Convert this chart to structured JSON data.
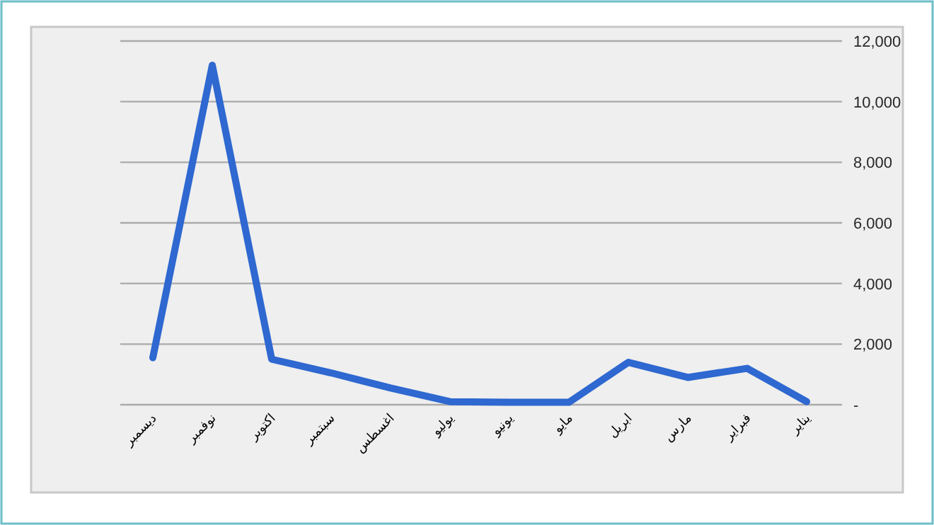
{
  "chart_data": {
    "type": "line",
    "categories": [
      "ديسمبر",
      "نوفمبر",
      "اكتوبر",
      "سبتمبر",
      "اغسطس",
      "يوليو",
      "يونيو",
      "مايو",
      "ابريل",
      "مارس",
      "فبراير",
      "يناير"
    ],
    "series": [
      {
        "color": "#2e68d0",
        "values": [
          1550,
          11200,
          1500,
          1050,
          550,
          100,
          80,
          80,
          1400,
          900,
          1200,
          100
        ]
      }
    ],
    "ylim": [
      0,
      12000
    ],
    "yticks": [
      {
        "value": 0,
        "label": "-"
      },
      {
        "value": 2000,
        "label": "2,000"
      },
      {
        "value": 4000,
        "label": "4,000"
      },
      {
        "value": 6000,
        "label": "6,000"
      },
      {
        "value": 8000,
        "label": "8,000"
      },
      {
        "value": 10000,
        "label": "10,000"
      },
      {
        "value": 12000,
        "label": "12,000"
      }
    ],
    "grid": "y",
    "marker": "none",
    "line_style": "solid"
  }
}
